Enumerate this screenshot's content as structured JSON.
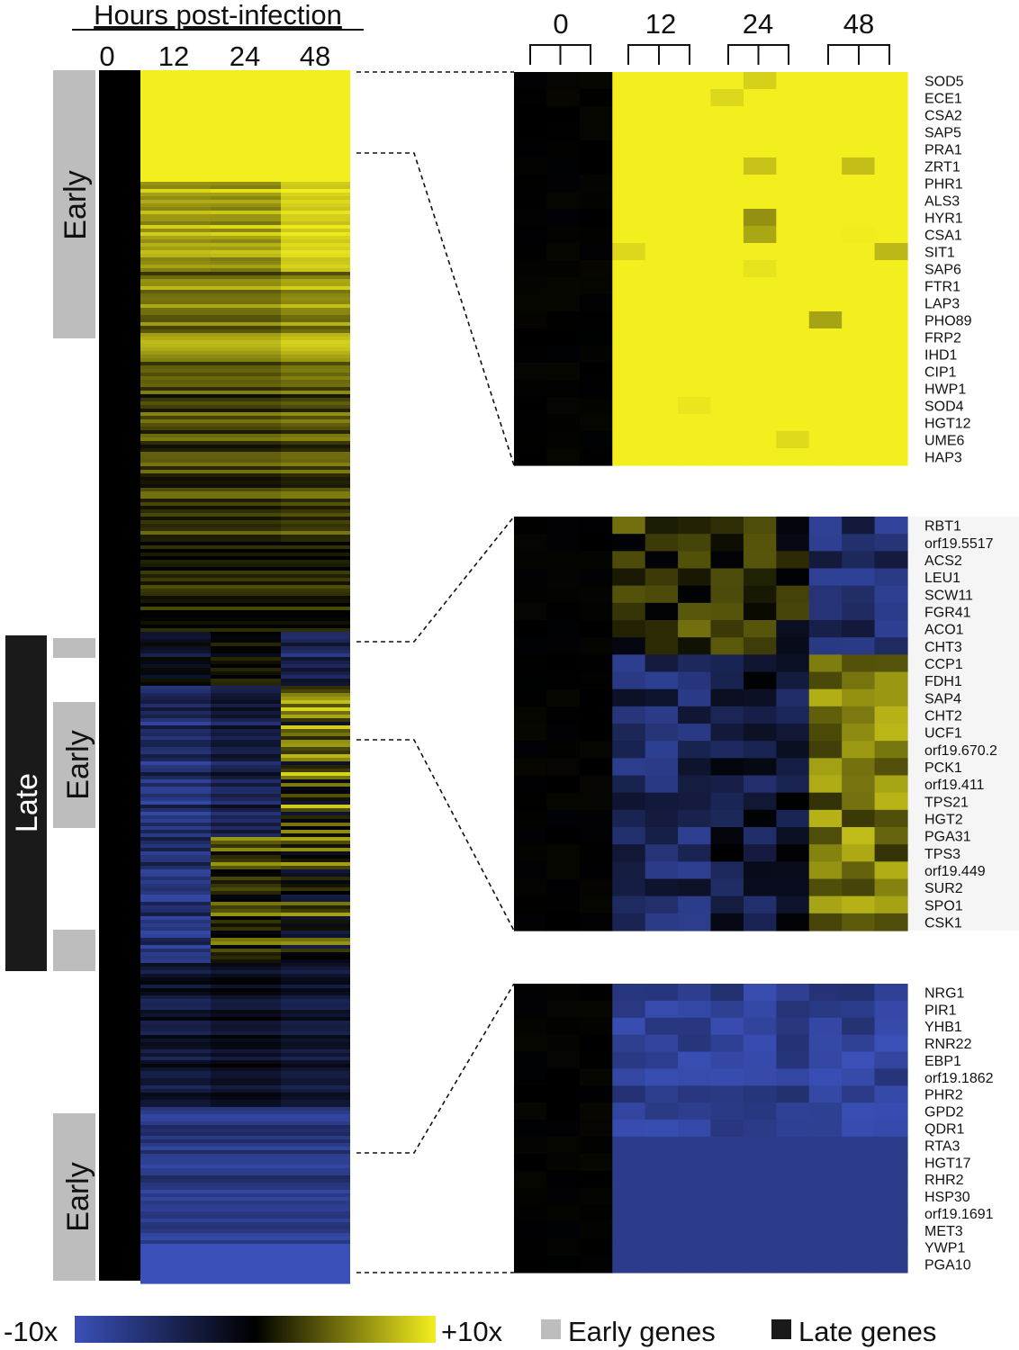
{
  "chart_data": {
    "type": "heatmap",
    "title": "Hours post-infection",
    "columns": [
      "0",
      "12",
      "24",
      "48"
    ],
    "colorbar": {
      "min_label": "-10x",
      "max_label": "+10x",
      "colors": [
        "#3a50b8",
        "#000000",
        "#f3ee1e"
      ]
    },
    "legend": {
      "early": {
        "label": "Early genes",
        "color": "#bdbdbd"
      },
      "late": {
        "label": "Late genes",
        "color": "#1a1a1a"
      }
    },
    "side_labels": {
      "early_top": "Early",
      "late": "Late",
      "early_mid": "Early",
      "early_bottom": "Early"
    },
    "panels": [
      {
        "name": "upregulated-early",
        "genes": [
          "SOD5",
          "ECE1",
          "CSA2",
          "SAP5",
          "PRA1",
          "ZRT1",
          "PHR1",
          "ALS3",
          "HYR1",
          "CSA1",
          "SIT1",
          "SAP6",
          "FTR1",
          "LAP3",
          "PHO89",
          "FRP2",
          "IHD1",
          "CIP1",
          "HWP1",
          "SOD4",
          "HGT12",
          "UME6",
          "HAP3"
        ]
      },
      {
        "name": "late-response",
        "genes": [
          "RBT1",
          "orf19.5517",
          "ACS2",
          "LEU1",
          "SCW11",
          "FGR41",
          "ACO1",
          "CHT3",
          "CCP1",
          "FDH1",
          "SAP4",
          "CHT2",
          "UCF1",
          "orf19.670.2",
          "PCK1",
          "orf19.411",
          "TPS21",
          "HGT2",
          "PGA31",
          "TPS3",
          "orf19.449",
          "SUR2",
          "SPO1",
          "CSK1"
        ]
      },
      {
        "name": "downregulated-early",
        "genes": [
          "NRG1",
          "PIR1",
          "YHB1",
          "RNR22",
          "EBP1",
          "orf19.1862",
          "PHR2",
          "GPD2",
          "QDR1",
          "RTA3",
          "HGT17",
          "RHR2",
          "HSP30",
          "orf19.1691",
          "MET3",
          "YWP1",
          "PGA10"
        ]
      }
    ]
  }
}
